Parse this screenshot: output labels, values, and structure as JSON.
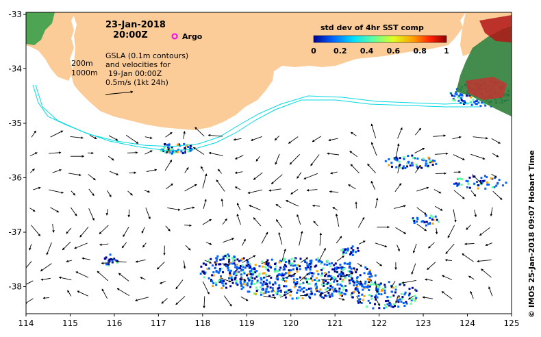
{
  "map": {
    "date": "23-Jan-2018",
    "time": "20:00Z",
    "argo_label": "Argo",
    "gsla_lines": [
      "GSLA (0.1m contours)",
      "and velocities for",
      "19-Jan 00:00Z",
      "0.5m/s (1kt 24h)"
    ],
    "isobath_labels": [
      "200m",
      "1000m"
    ],
    "colorbar": {
      "title": "std dev of 4hr SST comp",
      "ticks": [
        "0",
        "0.2",
        "0.4",
        "0.6",
        "0.8",
        "1"
      ],
      "colors": [
        "#00008f",
        "#0060ff",
        "#00dfff",
        "#60ff9f",
        "#dfff20",
        "#ff9f00",
        "#ff2000",
        "#8f0000"
      ]
    },
    "x_ticks": [
      "114",
      "115",
      "116",
      "117",
      "118",
      "119",
      "120",
      "121",
      "122",
      "123",
      "124",
      "125"
    ],
    "y_ticks": [
      "-33",
      "-34",
      "-35",
      "-36",
      "-37",
      "-38"
    ],
    "credit": "© IMOS 25-Jan-2018 09:07 Hobart Time",
    "colors": {
      "land": "#fbcb98",
      "isobath": "#00d8e0",
      "argo": "#ff00ff",
      "arrow": "#000000"
    }
  }
}
